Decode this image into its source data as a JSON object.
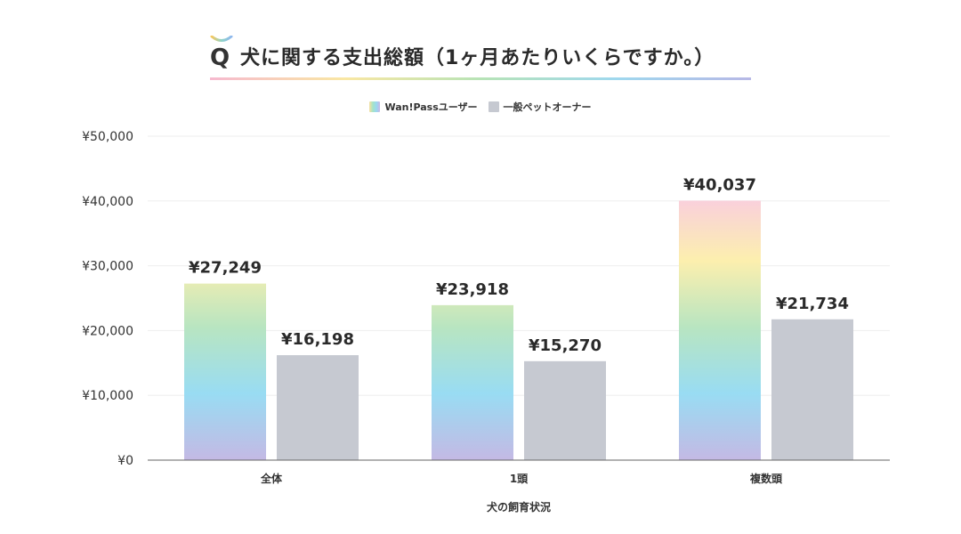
{
  "colors": {
    "wan_gradient": [
      "#f9cde0",
      "#fcefae",
      "#b8e5c1",
      "#99dcf3",
      "#c4b9e4"
    ],
    "gray_bar": "#c6c9d1",
    "grid": "#eeeeee",
    "axis": "#666666"
  },
  "title": {
    "marker": "Q",
    "text": "犬に関する支出総額（1ヶ月あたりいくらですか。）"
  },
  "chart_data": {
    "type": "bar",
    "title": "犬に関する支出総額（1ヶ月あたりいくらですか。）",
    "xlabel": "犬の飼育状況",
    "ylabel": "",
    "categories": [
      "全体",
      "1頭",
      "複数頭"
    ],
    "series": [
      {
        "name": "Wan!Passユーザー",
        "values": [
          27249,
          23918,
          40037
        ],
        "labels": [
          "¥27,249",
          "¥23,918",
          "¥40,037"
        ]
      },
      {
        "name": "一般ペットオーナー",
        "values": [
          16198,
          15270,
          21734
        ],
        "labels": [
          "¥16,198",
          "¥15,270",
          "¥21,734"
        ]
      }
    ],
    "ylim": [
      0,
      50000
    ],
    "yticks": [
      0,
      10000,
      20000,
      30000,
      40000,
      50000
    ],
    "ytick_labels": [
      "¥0",
      "¥10,000",
      "¥20,000",
      "¥30,000",
      "¥40,000",
      "¥50,000"
    ],
    "grid": true,
    "legend": "top-center"
  }
}
